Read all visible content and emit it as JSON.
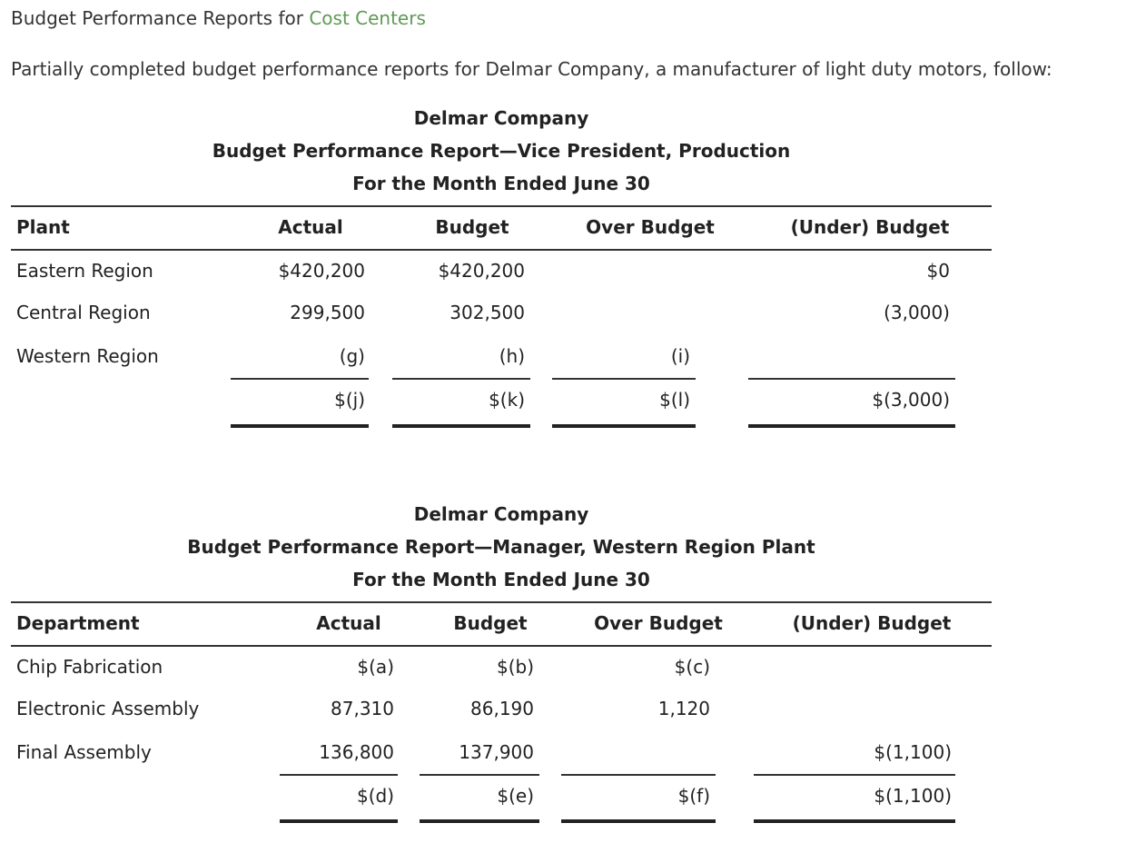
{
  "page": {
    "title_prefix": "Budget Performance Reports for ",
    "title_link": "Cost Centers",
    "intro": "Partially completed budget performance reports for Delmar Company, a manufacturer of light duty motors, follow:"
  },
  "report1": {
    "company": "Delmar Company",
    "title": "Budget Performance Report—Vice President, Production",
    "period": "For the Month Ended June 30",
    "headers": [
      "Plant",
      "Actual",
      "Budget",
      "Over Budget",
      "(Under) Budget"
    ],
    "rows": [
      {
        "name": "Eastern Region",
        "actual": "$420,200",
        "budget": "$420,200",
        "over": "",
        "under": "$0"
      },
      {
        "name": "Central Region",
        "actual": "299,500",
        "budget": "302,500",
        "over": "",
        "under": "(3,000)"
      },
      {
        "name": "Western Region",
        "actual": "(g)",
        "budget": "(h)",
        "over": "(i)",
        "under": ""
      }
    ],
    "total": {
      "actual": "$(j)",
      "budget": "$(k)",
      "over": "$(l)",
      "under": "$(3,000)"
    }
  },
  "report2": {
    "company": "Delmar Company",
    "title": "Budget Performance Report—Manager, Western Region Plant",
    "period": "For the Month Ended June 30",
    "headers": [
      "Department",
      "Actual",
      "Budget",
      "Over Budget",
      "(Under) Budget"
    ],
    "rows": [
      {
        "name": "Chip Fabrication",
        "actual": "$(a)",
        "budget": "$(b)",
        "over": "$(c)",
        "under": ""
      },
      {
        "name": "Electronic Assembly",
        "actual": "87,310",
        "budget": "86,190",
        "over": "1,120",
        "under": ""
      },
      {
        "name": "Final Assembly",
        "actual": "136,800",
        "budget": "137,900",
        "over": "",
        "under": "$(1,100)"
      }
    ],
    "total": {
      "actual": "$(d)",
      "budget": "$(e)",
      "over": "$(f)",
      "under": "$(1,100)"
    }
  }
}
